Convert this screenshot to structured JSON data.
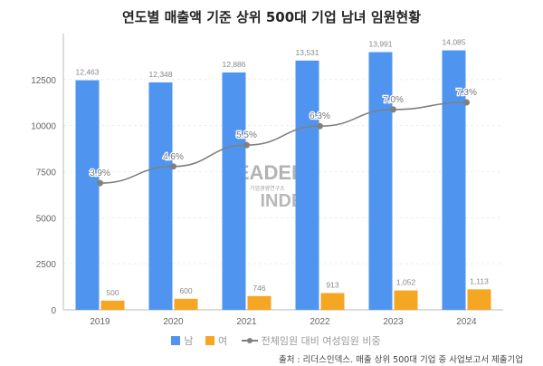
{
  "chart_data": {
    "type": "bar",
    "title": "연도별 매출액 기준 상위 500대 기업 남녀 임원현황",
    "categories": [
      "2019",
      "2020",
      "2021",
      "2022",
      "2023",
      "2024"
    ],
    "series": [
      {
        "name": "남",
        "type": "bar",
        "color": "#4f95f0",
        "values": [
          12463,
          12348,
          12886,
          13531,
          13991,
          14085
        ],
        "labels": [
          "12,463",
          "12,348",
          "12,886",
          "13,531",
          "13,991",
          "14,085"
        ]
      },
      {
        "name": "여",
        "type": "bar",
        "color": "#f5a623",
        "values": [
          500,
          600,
          746,
          913,
          1052,
          1113
        ],
        "labels": [
          "500",
          "600",
          "746",
          "913",
          "1,052",
          "1,113"
        ]
      },
      {
        "name": "전체임원 대비 여성임원 비중",
        "type": "line",
        "axis": "secondary",
        "color": "#808080",
        "values": [
          3.9,
          4.6,
          5.5,
          6.3,
          7.0,
          7.3
        ],
        "labels": [
          "3.9%",
          "4.6%",
          "5.5%",
          "6.3%",
          "7.0%",
          "7.3%"
        ]
      }
    ],
    "ylim": [
      0,
      15000
    ],
    "yticks": [
      "0",
      "2500",
      "5000",
      "7500",
      "10000",
      "12500"
    ],
    "grid": true,
    "legend": "bottom"
  },
  "source": "출처 : 리더스인덱스. 매출 상위 500대 기업 중 사업보고서 제출기업",
  "watermark": {
    "text": "LEADERS INDEX",
    "sub": "기업경영연구소"
  }
}
